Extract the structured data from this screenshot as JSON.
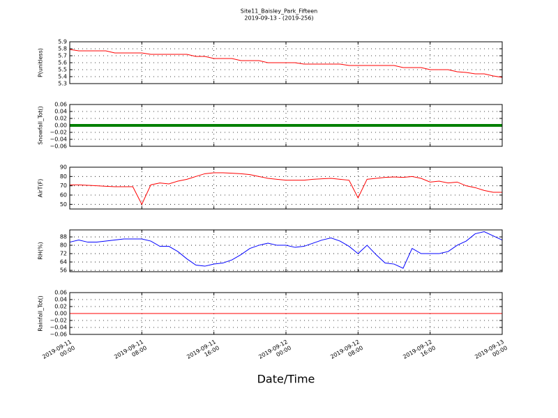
{
  "chart_data": {
    "title": "Site11_Baisley_Park_Fifteen",
    "subtitle": "2019-09-13 - (2019-256)",
    "xlabel": "Date/Time",
    "xlim": [
      "2019-09-11 00:00",
      "2019-09-13 00:00"
    ],
    "xticks": [
      {
        "value": "2019-09-11 00:00",
        "label": "2019-09-11\n00:00"
      },
      {
        "value": "2019-09-11 08:00",
        "label": "2019-09-11\n08:00"
      },
      {
        "value": "2019-09-11 16:00",
        "label": "2019-09-11\n16:00"
      },
      {
        "value": "2019-09-12 00:00",
        "label": "2019-09-12\n00:00"
      },
      {
        "value": "2019-09-12 08:00",
        "label": "2019-09-12\n08:00"
      },
      {
        "value": "2019-09-12 16:00",
        "label": "2019-09-12\n16:00"
      },
      {
        "value": "2019-09-13 00:00",
        "label": "2019-09-13\n00:00"
      }
    ],
    "grid": true,
    "x": [
      "2019-09-11 00:00",
      "2019-09-11 01:00",
      "2019-09-11 02:00",
      "2019-09-11 03:00",
      "2019-09-11 04:00",
      "2019-09-11 05:00",
      "2019-09-11 06:00",
      "2019-09-11 07:00",
      "2019-09-11 08:00",
      "2019-09-11 09:00",
      "2019-09-11 10:00",
      "2019-09-11 11:00",
      "2019-09-11 12:00",
      "2019-09-11 13:00",
      "2019-09-11 14:00",
      "2019-09-11 15:00",
      "2019-09-11 16:00",
      "2019-09-11 17:00",
      "2019-09-11 18:00",
      "2019-09-11 19:00",
      "2019-09-11 20:00",
      "2019-09-11 21:00",
      "2019-09-11 22:00",
      "2019-09-11 23:00",
      "2019-09-12 00:00",
      "2019-09-12 01:00",
      "2019-09-12 02:00",
      "2019-09-12 03:00",
      "2019-09-12 04:00",
      "2019-09-12 05:00",
      "2019-09-12 06:00",
      "2019-09-12 07:00",
      "2019-09-12 08:00",
      "2019-09-12 09:00",
      "2019-09-12 10:00",
      "2019-09-12 11:00",
      "2019-09-12 12:00",
      "2019-09-12 13:00",
      "2019-09-12 14:00",
      "2019-09-12 15:00",
      "2019-09-12 16:00",
      "2019-09-12 17:00",
      "2019-09-12 18:00",
      "2019-09-12 19:00",
      "2019-09-12 20:00",
      "2019-09-12 21:00",
      "2019-09-12 22:00",
      "2019-09-12 23:00",
      "2019-09-13 00:00"
    ],
    "panels": [
      {
        "type": "line",
        "ylabel": "P(unitless)",
        "ylim": [
          5.3,
          5.9
        ],
        "yticks": [
          5.3,
          5.4,
          5.5,
          5.6,
          5.7,
          5.8,
          5.9
        ],
        "series": [
          {
            "color": "#ff0000",
            "values": [
              5.79,
              5.77,
              5.77,
              5.77,
              5.77,
              5.74,
              5.74,
              5.74,
              5.74,
              5.72,
              5.72,
              5.72,
              5.72,
              5.72,
              5.69,
              5.69,
              5.66,
              5.66,
              5.66,
              5.63,
              5.63,
              5.63,
              5.6,
              5.6,
              5.6,
              5.6,
              5.58,
              5.58,
              5.58,
              5.58,
              5.58,
              5.56,
              5.56,
              5.56,
              5.56,
              5.56,
              5.56,
              5.53,
              5.53,
              5.53,
              5.5,
              5.5,
              5.5,
              5.47,
              5.46,
              5.44,
              5.44,
              5.41,
              5.39
            ]
          }
        ]
      },
      {
        "type": "line",
        "ylabel": "Snowfall_Tot()",
        "ylim": [
          -0.06,
          0.06
        ],
        "yticks": [
          {
            "value": -0.06,
            "label": "−0.06"
          },
          {
            "value": -0.04,
            "label": "−0.04"
          },
          {
            "value": -0.02,
            "label": "−0.02"
          },
          {
            "value": 0,
            "label": "0.00"
          },
          {
            "value": 0.02,
            "label": "0.02"
          },
          {
            "value": 0.04,
            "label": "0.04"
          },
          {
            "value": 0.06,
            "label": "0.06"
          }
        ],
        "series": [
          {
            "color": "#008000",
            "values": [
              0,
              0,
              0,
              0,
              0,
              0,
              0,
              0,
              0,
              0,
              0,
              0,
              0,
              0,
              0,
              0,
              0,
              0,
              0,
              0,
              0,
              0,
              0,
              0,
              0,
              0,
              0,
              0,
              0,
              0,
              0,
              0,
              0,
              0,
              0,
              0,
              0,
              0,
              0,
              0,
              0,
              0,
              0,
              0,
              0,
              0,
              0,
              0,
              0
            ]
          }
        ]
      },
      {
        "type": "line",
        "ylabel": "AirT(F)",
        "ylim": [
          45,
          90
        ],
        "yticks": [
          50,
          60,
          70,
          80,
          90
        ],
        "series": [
          {
            "color": "#ff0000",
            "values": [
              71,
              71,
              70.5,
              70,
              69.5,
              69,
              69,
              69,
              50,
              71,
              73,
              72,
              75,
              77,
              80,
              83,
              84,
              84,
              83.5,
              83,
              82,
              80,
              78,
              77,
              76,
              76,
              76,
              77,
              77.5,
              78,
              77,
              76,
              57,
              77,
              78,
              79,
              79.5,
              79,
              80,
              78,
              74,
              75,
              73,
              74,
              70,
              68,
              65,
              63,
              63
            ]
          }
        ]
      },
      {
        "type": "line",
        "ylabel": "RH(%)",
        "ylim": [
          54.7,
          94.7
        ],
        "yticks": [
          56,
          64,
          72,
          80,
          88
        ],
        "series": [
          {
            "color": "#0000ff",
            "values": [
              83,
              85,
              83,
              83,
              84,
              85,
              86,
              86,
              86,
              84,
              79,
              79,
              74,
              67,
              61,
              60,
              62,
              63,
              66,
              71,
              77,
              80,
              82,
              80,
              80,
              78,
              79,
              82,
              85,
              87,
              84,
              79,
              72,
              80,
              71,
              63,
              62,
              58,
              77,
              72,
              72,
              72,
              74,
              80,
              84,
              91,
              93,
              89,
              85
            ]
          }
        ]
      },
      {
        "type": "line",
        "ylabel": "Rainfall_Tot()",
        "ylim": [
          -0.06,
          0.06
        ],
        "yticks": [
          {
            "value": -0.06,
            "label": "−0.06"
          },
          {
            "value": -0.04,
            "label": "−0.04"
          },
          {
            "value": -0.02,
            "label": "−0.02"
          },
          {
            "value": 0,
            "label": "0.00"
          },
          {
            "value": 0.02,
            "label": "0.02"
          },
          {
            "value": 0.04,
            "label": "0.04"
          },
          {
            "value": 0.06,
            "label": "0.06"
          }
        ],
        "series": [
          {
            "color": "#ff0000",
            "values": [
              0,
              0,
              0,
              0,
              0,
              0,
              0,
              0,
              0,
              0,
              0,
              0,
              0,
              0,
              0,
              0,
              0,
              0,
              0,
              0,
              0,
              0,
              0,
              0,
              0,
              0,
              0,
              0,
              0,
              0,
              0,
              0,
              0,
              0,
              0,
              0,
              0,
              0,
              0,
              0,
              0,
              0,
              0,
              0,
              0,
              0,
              0,
              0,
              0
            ]
          }
        ]
      }
    ]
  }
}
